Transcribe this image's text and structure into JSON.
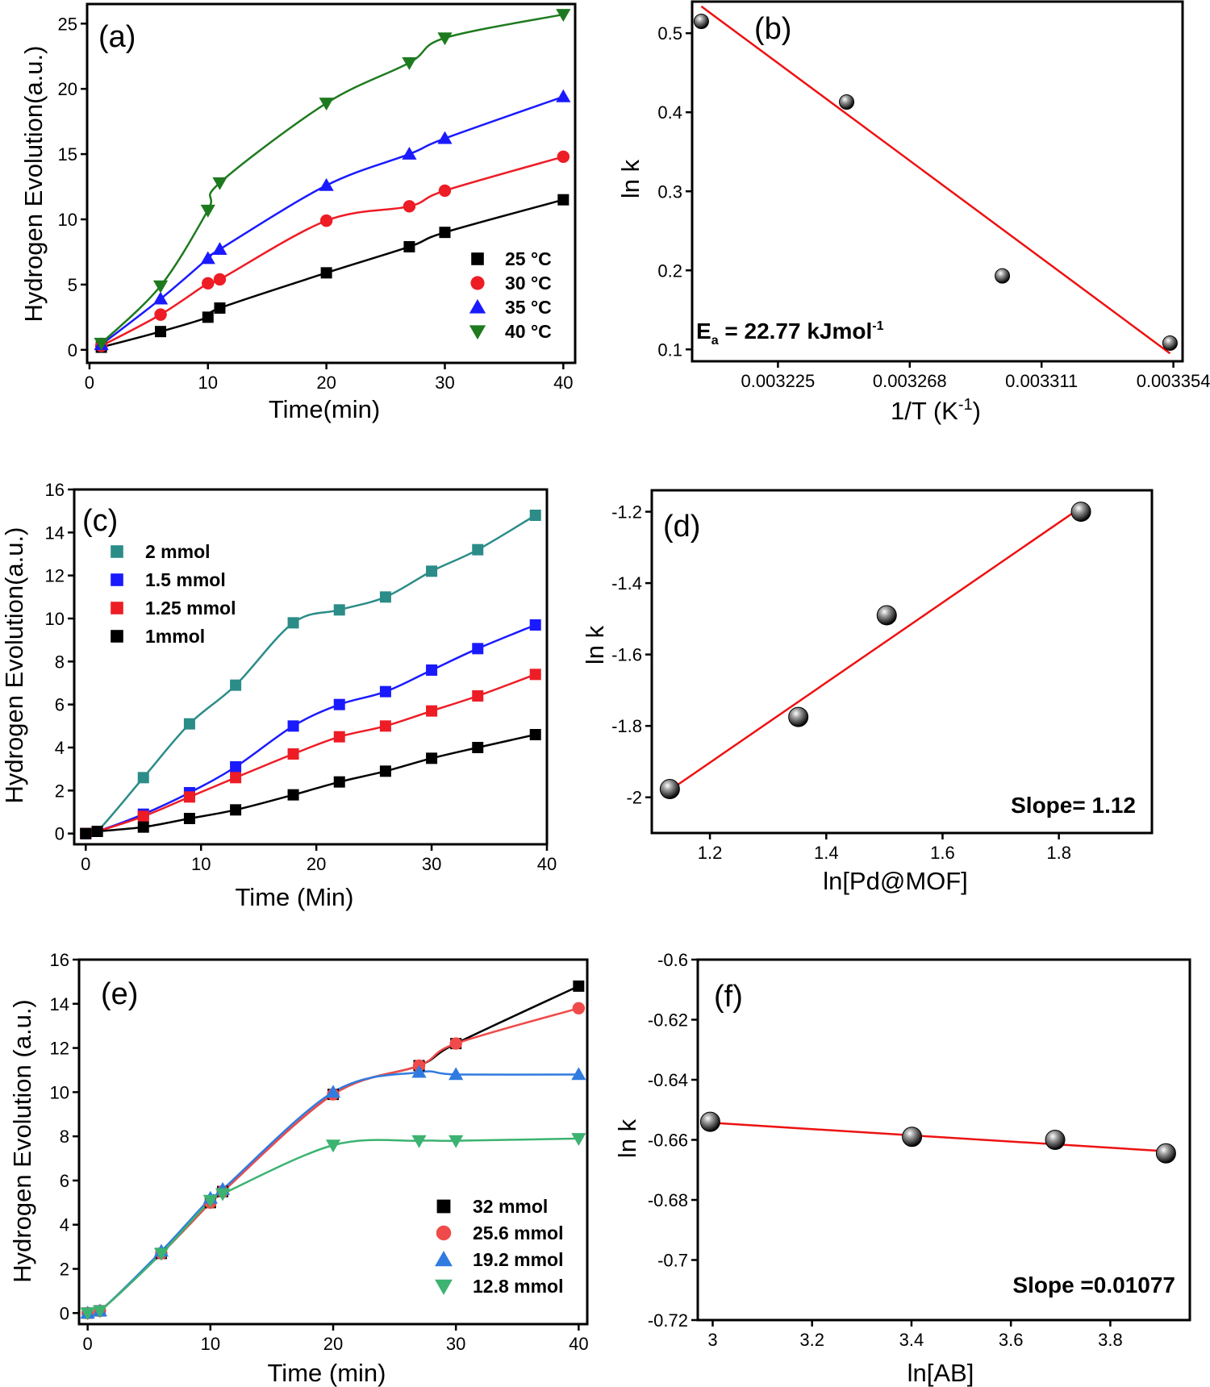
{
  "palette": {
    "black": "#000000",
    "red": "#ee1c25",
    "blue": "#1a1aff",
    "green": "#1e7a1e",
    "teal": "#2b8c88",
    "pale_red": "#f04a4a",
    "sky_blue": "#2f7be0",
    "mint": "#3cb371",
    "fit_red": "#ee1111"
  },
  "chart_data": [
    {
      "id": "a",
      "type": "scatter",
      "panel_label": "(a)",
      "xlabel": "Time(min)",
      "ylabel": "Hydrogen  Evolution(a.u.)",
      "xlim": [
        -0.2,
        41
      ],
      "ylim": [
        -1,
        26.5
      ],
      "xticks": [
        0,
        10,
        20,
        30,
        40
      ],
      "yticks": [
        0,
        5,
        10,
        15,
        20,
        25
      ],
      "legend_position": "lower-right",
      "series": [
        {
          "name": "25 °C",
          "marker": "square",
          "color": "#000000",
          "x": [
            1,
            6,
            10,
            11,
            20,
            27,
            30,
            40
          ],
          "y": [
            0.2,
            1.4,
            2.5,
            3.2,
            5.9,
            7.9,
            9.0,
            11.5
          ]
        },
        {
          "name": "30 °C",
          "marker": "circle",
          "color": "#ee1c25",
          "x": [
            1,
            6,
            10,
            11,
            20,
            27,
            30,
            40
          ],
          "y": [
            0.3,
            2.7,
            5.1,
            5.4,
            9.9,
            11.0,
            12.2,
            14.8
          ]
        },
        {
          "name": "35 °C",
          "marker": "triangle-up",
          "color": "#1a1aff",
          "x": [
            1,
            6,
            10,
            11,
            20,
            27,
            30,
            40
          ],
          "y": [
            0.4,
            3.9,
            7.0,
            7.7,
            12.6,
            15.0,
            16.2,
            19.4
          ]
        },
        {
          "name": "40 °C",
          "marker": "triangle-down",
          "color": "#1e7a1e",
          "x": [
            1,
            6,
            10,
            11,
            20,
            27,
            30,
            40
          ],
          "y": [
            0.5,
            4.9,
            10.7,
            12.8,
            18.9,
            22.0,
            23.9,
            25.7
          ]
        }
      ]
    },
    {
      "id": "b",
      "type": "scatter",
      "panel_label": "(b)",
      "xlabel": "1/T (K-1)",
      "ylabel": "ln k",
      "xlim": [
        0.003197,
        0.003357
      ],
      "ylim": [
        0.085,
        0.54
      ],
      "xticks": [
        0.003225,
        0.003268,
        0.003311,
        0.003354
      ],
      "xtick_labels": [
        "0.003225",
        "0.003268",
        "0.003311",
        "0.003354"
      ],
      "yticks": [
        0.1,
        0.2,
        0.3,
        0.4,
        0.5
      ],
      "annotation": "Ea = 22.77 kJmol-1",
      "series": [
        {
          "name": "",
          "marker": "ball",
          "color": "#000000",
          "x": [
            0.0032,
            0.0032474,
            0.0032982,
            0.0033529
          ],
          "y": [
            0.515,
            0.413,
            0.193,
            0.108
          ]
        }
      ],
      "fit": {
        "x": [
          0.0032,
          0.0033529
        ],
        "y": [
          0.534,
          0.095
        ],
        "color": "#ee1111"
      }
    },
    {
      "id": "c",
      "type": "scatter",
      "panel_label": "(c)",
      "xlabel": "Time (Min)",
      "ylabel": "Hydrogen Evolution(a.u.)",
      "xlim": [
        -1,
        40
      ],
      "ylim": [
        -0.5,
        16
      ],
      "xticks": [
        0,
        10,
        20,
        30,
        40
      ],
      "yticks": [
        0,
        2,
        4,
        6,
        8,
        10,
        12,
        14,
        16
      ],
      "legend_position": "upper-left",
      "series": [
        {
          "name": "2 mmol",
          "marker": "square",
          "color": "#2b8c88",
          "x": [
            0,
            1,
            5,
            9,
            13,
            18,
            22,
            26,
            30,
            34,
            39
          ],
          "y": [
            0.0,
            0.1,
            2.6,
            5.1,
            6.9,
            9.8,
            10.4,
            11.0,
            12.2,
            13.2,
            14.8
          ]
        },
        {
          "name": "1.5 mmol",
          "marker": "square",
          "color": "#1a1aff",
          "x": [
            0,
            1,
            5,
            9,
            13,
            18,
            22,
            26,
            30,
            34,
            39
          ],
          "y": [
            0.0,
            0.1,
            0.9,
            1.9,
            3.1,
            5.0,
            6.0,
            6.6,
            7.6,
            8.6,
            9.7
          ]
        },
        {
          "name": "1.25 mmol",
          "marker": "square",
          "color": "#ee1c25",
          "x": [
            0,
            1,
            5,
            9,
            13,
            18,
            22,
            26,
            30,
            34,
            39
          ],
          "y": [
            0.0,
            0.1,
            0.8,
            1.7,
            2.6,
            3.7,
            4.5,
            5.0,
            5.7,
            6.4,
            7.4
          ]
        },
        {
          "name": "1mmol",
          "marker": "square",
          "color": "#000000",
          "x": [
            0,
            1,
            5,
            9,
            13,
            18,
            22,
            26,
            30,
            34,
            39
          ],
          "y": [
            0.0,
            0.1,
            0.3,
            0.7,
            1.1,
            1.8,
            2.4,
            2.9,
            3.5,
            4.0,
            4.6
          ]
        }
      ]
    },
    {
      "id": "d",
      "type": "scatter",
      "panel_label": "(d)",
      "xlabel": "ln[Pd@MOF]",
      "ylabel": "ln k",
      "xlim": [
        1.1,
        1.96
      ],
      "ylim": [
        -2.1,
        -1.14
      ],
      "xticks": [
        1.2,
        1.4,
        1.6,
        1.8
      ],
      "yticks": [
        -2.0,
        -1.8,
        -1.6,
        -1.4,
        -1.2
      ],
      "annotation": "Slope= 1.12",
      "series": [
        {
          "name": "",
          "marker": "ball",
          "color": "#000000",
          "x": [
            1.131,
            1.352,
            1.504,
            1.838
          ],
          "y": [
            -1.977,
            -1.775,
            -1.49,
            -1.2
          ]
        }
      ],
      "fit": {
        "x": [
          1.131,
          1.838
        ],
        "y": [
          -1.98,
          -1.188
        ],
        "color": "#ee1111"
      }
    },
    {
      "id": "e",
      "type": "scatter",
      "panel_label": "(e)",
      "xlabel": "Time (min)",
      "ylabel": "Hydrogen Evolution (a.u.)",
      "xlim": [
        -0.7,
        40.7
      ],
      "ylim": [
        -0.5,
        16
      ],
      "xticks": [
        0,
        10,
        20,
        30,
        40
      ],
      "yticks": [
        0,
        2,
        4,
        6,
        8,
        10,
        12,
        14,
        16
      ],
      "legend_position": "lower-right",
      "series": [
        {
          "name": "32 mmol",
          "marker": "square",
          "color": "#000000",
          "x": [
            0,
            1,
            6,
            10,
            11,
            20,
            27,
            30,
            40
          ],
          "y": [
            0.0,
            0.1,
            2.7,
            5.0,
            5.5,
            9.9,
            11.2,
            12.2,
            14.8
          ]
        },
        {
          "name": "25.6 mmol",
          "marker": "circle",
          "color": "#f04a4a",
          "x": [
            0,
            1,
            6,
            10,
            11,
            20,
            27,
            30,
            40
          ],
          "y": [
            0.0,
            0.1,
            2.7,
            5.0,
            5.5,
            9.9,
            11.2,
            12.2,
            13.8
          ]
        },
        {
          "name": "19.2 mmol",
          "marker": "triangle-up",
          "color": "#2f7be0",
          "x": [
            0,
            1,
            6,
            10,
            11,
            20,
            27,
            30,
            40
          ],
          "y": [
            0.0,
            0.1,
            2.8,
            5.2,
            5.6,
            10.0,
            10.9,
            10.8,
            10.8
          ]
        },
        {
          "name": "12.8 mmol",
          "marker": "triangle-down",
          "color": "#3cb371",
          "x": [
            0,
            1,
            6,
            10,
            11,
            20,
            27,
            30,
            40
          ],
          "y": [
            0.0,
            0.1,
            2.7,
            5.1,
            5.4,
            7.6,
            7.8,
            7.8,
            7.9
          ]
        }
      ]
    },
    {
      "id": "f",
      "type": "scatter",
      "panel_label": "(f)",
      "xlabel": "ln[AB]",
      "ylabel": "ln k",
      "xlim": [
        2.97,
        3.96
      ],
      "ylim": [
        -0.72,
        -0.6
      ],
      "xticks": [
        3.0,
        3.2,
        3.4,
        3.6,
        3.8
      ],
      "yticks": [
        -0.72,
        -0.7,
        -0.68,
        -0.66,
        -0.64,
        -0.62,
        -0.6
      ],
      "annotation": "Slope =0.01077",
      "series": [
        {
          "name": "",
          "marker": "ball",
          "color": "#000000",
          "x": [
            2.995,
            3.401,
            3.689,
            3.912
          ],
          "y": [
            -0.654,
            -0.659,
            -0.66,
            -0.6645
          ]
        }
      ],
      "fit": {
        "x": [
          2.995,
          3.912
        ],
        "y": [
          -0.6543,
          -0.6638
        ],
        "color": "#ee1111"
      }
    }
  ]
}
